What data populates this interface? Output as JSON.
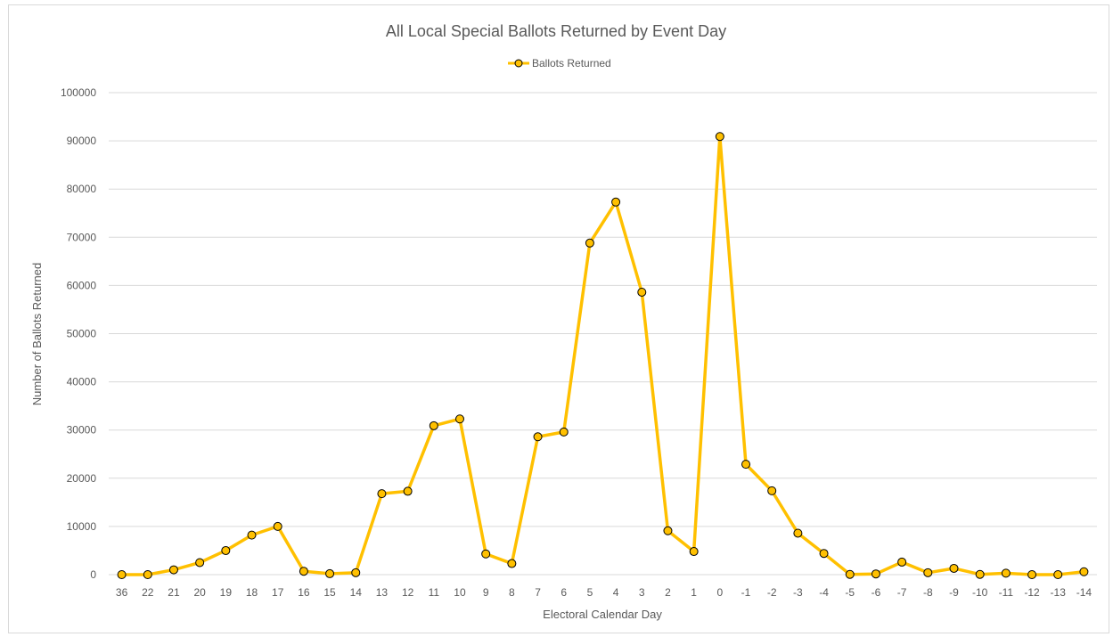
{
  "chart_data": {
    "type": "line",
    "title": "All Local Special Ballots Returned by Event Day",
    "xlabel": "Electoral Calendar Day",
    "ylabel": "Number of Ballots Returned",
    "ylim": [
      0,
      100000
    ],
    "yticks": [
      0,
      10000,
      20000,
      30000,
      40000,
      50000,
      60000,
      70000,
      80000,
      90000,
      100000
    ],
    "grid": true,
    "legend_position": "top",
    "categories": [
      "36",
      "22",
      "21",
      "20",
      "19",
      "18",
      "17",
      "16",
      "15",
      "14",
      "13",
      "12",
      "11",
      "10",
      "9",
      "8",
      "7",
      "6",
      "5",
      "4",
      "3",
      "2",
      "1",
      "0",
      "-1",
      "-2",
      "-3",
      "-4",
      "-5",
      "-6",
      "-7",
      "-8",
      "-9",
      "-10",
      "-11",
      "-12",
      "-13",
      "-14"
    ],
    "series": [
      {
        "name": "Ballots Returned",
        "line_color": "#FFC000",
        "marker_color": "#FFC000",
        "values": [
          0,
          0,
          1000,
          2500,
          5000,
          8200,
          10000,
          700,
          200,
          400,
          16800,
          17300,
          30900,
          32300,
          4300,
          2300,
          28600,
          29600,
          68800,
          77300,
          58600,
          9100,
          4800,
          90900,
          22900,
          17400,
          8600,
          4400,
          50,
          150,
          2600,
          400,
          1300,
          50,
          300,
          0,
          0,
          600
        ]
      }
    ]
  }
}
